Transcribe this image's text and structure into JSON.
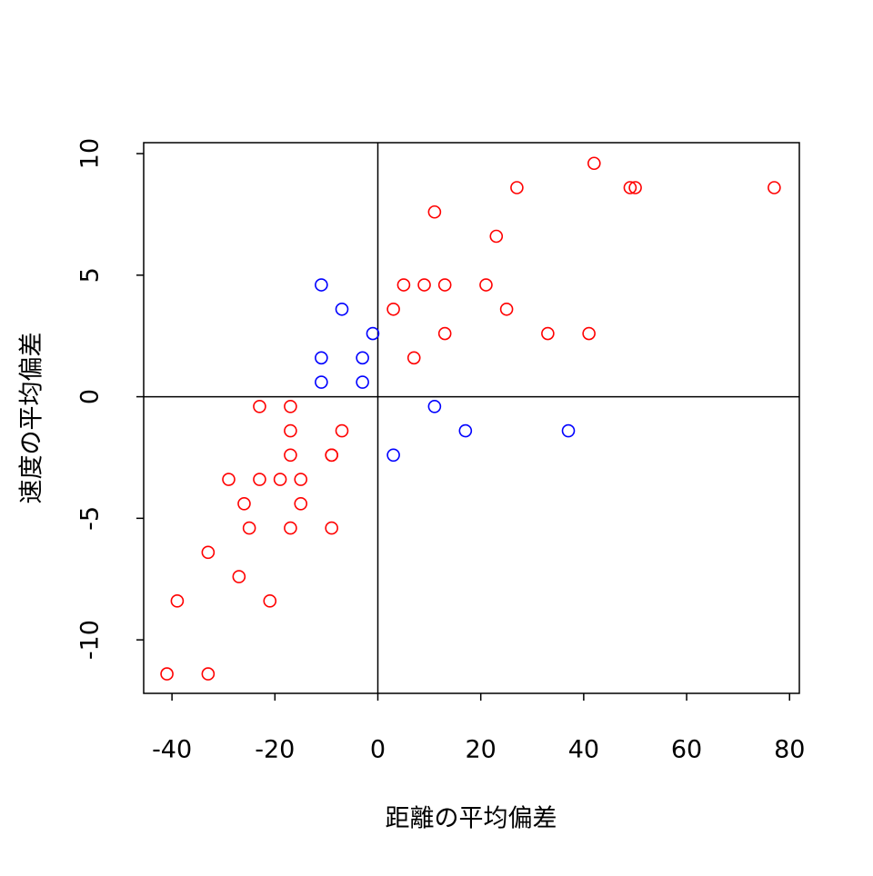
{
  "chart_data": {
    "type": "scatter",
    "xlabel": "距離の平均偏差",
    "ylabel": "速度の平均偏差",
    "xlim": [
      -45.5,
      81.9
    ],
    "ylim": [
      -12.2,
      10.45
    ],
    "xticks": [
      -40,
      -20,
      0,
      20,
      40,
      60,
      80
    ],
    "yticks": [
      -10,
      -5,
      0,
      5,
      10
    ],
    "hline": 0,
    "vline": 0,
    "series": [
      {
        "color": "#ff0000",
        "x": [
          -40.98,
          -32.98,
          -38.98,
          -20.98,
          -26.98,
          -32.98,
          -24.98,
          -16.98,
          -8.98,
          -25.98,
          -14.98,
          -28.98,
          -22.98,
          -18.98,
          -14.98,
          -16.98,
          -8.98,
          -8.98,
          -16.98,
          -6.98,
          -22.98,
          -16.98,
          7.02,
          13.02,
          33.02,
          41.02,
          3.02,
          25.02,
          5.02,
          9.02,
          13.02,
          21.02,
          23.02,
          11.02,
          27.02,
          49.02,
          50.02,
          77.02,
          42.02
        ],
        "values": [
          -11.4,
          -11.4,
          -8.4,
          -8.4,
          -7.4,
          -6.4,
          -5.4,
          -5.4,
          -5.4,
          -4.4,
          -4.4,
          -3.4,
          -3.4,
          -3.4,
          -3.4,
          -2.4,
          -2.4,
          -2.4,
          -1.4,
          -1.4,
          -0.4,
          -0.4,
          1.6,
          2.6,
          2.6,
          2.6,
          3.6,
          3.6,
          4.6,
          4.6,
          4.6,
          4.6,
          6.6,
          7.6,
          8.6,
          8.6,
          8.6,
          8.6,
          9.6
        ]
      },
      {
        "color": "#0000ff",
        "x": [
          3.02,
          17.02,
          37.02,
          11.02,
          -10.98,
          -2.98,
          -10.98,
          -2.98,
          -0.98,
          -6.98,
          -10.98
        ],
        "values": [
          -2.4,
          -1.4,
          -1.4,
          -0.4,
          0.6,
          0.6,
          1.6,
          1.6,
          2.6,
          3.6,
          4.6
        ]
      }
    ]
  }
}
